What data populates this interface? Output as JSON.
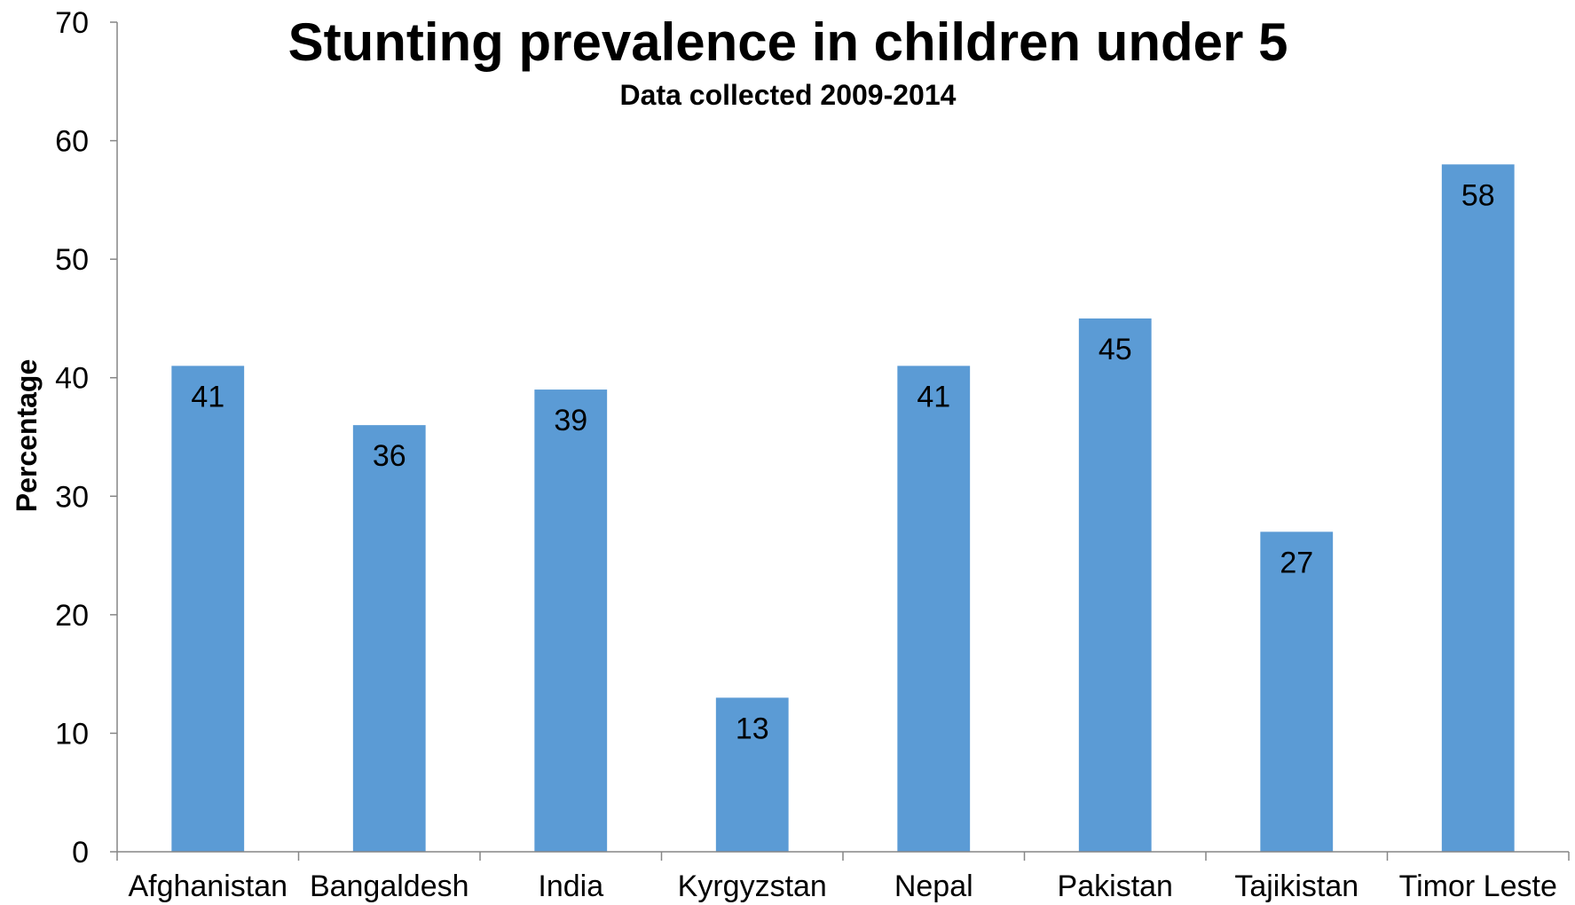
{
  "chart_data": {
    "type": "bar",
    "title": "Stunting prevalence in children under 5",
    "subtitle": "Data collected 2009-2014",
    "xlabel": "",
    "ylabel": "Percentage",
    "categories": [
      "Afghanistan",
      "Bangaldesh",
      "India",
      "Kyrgyzstan",
      "Nepal",
      "Pakistan",
      "Tajikistan",
      "Timor Leste"
    ],
    "values": [
      41,
      36,
      39,
      13,
      41,
      45,
      27,
      58
    ],
    "ylim": [
      0,
      70
    ],
    "yticks": [
      0,
      10,
      20,
      30,
      40,
      50,
      60,
      70
    ],
    "grid": false,
    "legend": "none",
    "data_labels": "inside-end",
    "bar_color": "#5B9BD5"
  }
}
